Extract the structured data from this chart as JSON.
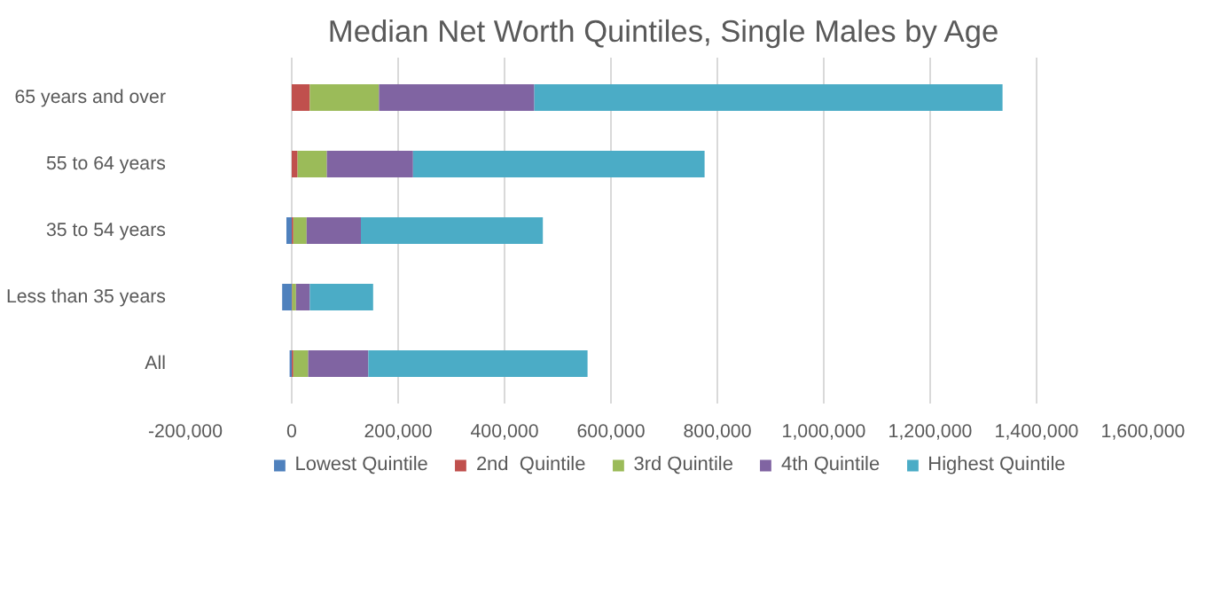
{
  "chart_data": {
    "type": "bar",
    "title": "Median Net Worth Quintiles, Single Males by Age",
    "orientation": "horizontal",
    "stacked": true,
    "categories": [
      "65 years and over",
      "55 to 64 years",
      "35 to 54 years",
      "Less than 35 years",
      "All"
    ],
    "series": [
      {
        "name": "Lowest Quintile",
        "color": "#4f81bd",
        "values": [
          0,
          0,
          -10000,
          -18000,
          -4000
        ]
      },
      {
        "name": "2nd  Quintile",
        "color": "#c0504d",
        "values": [
          34000,
          11000,
          3000,
          1000,
          3000
        ]
      },
      {
        "name": "3rd Quintile",
        "color": "#9bbb59",
        "values": [
          130000,
          55000,
          25000,
          7000,
          28000
        ]
      },
      {
        "name": "4th Quintile",
        "color": "#8064a2",
        "values": [
          292000,
          162000,
          102000,
          26000,
          113000
        ]
      },
      {
        "name": "Highest Quintile",
        "color": "#4bacc6",
        "values": [
          880000,
          548000,
          342000,
          119000,
          412000
        ]
      }
    ],
    "xlim": [
      -200000,
      1600000
    ],
    "xticks": [
      {
        "value": -200000,
        "label": "-200,000"
      },
      0,
      {
        "value": 200000,
        "label": "200,000"
      },
      {
        "value": 400000,
        "label": "400,000"
      },
      {
        "value": 600000,
        "label": "600,000"
      },
      {
        "value": 800000,
        "label": "800,000"
      },
      {
        "value": 1000000,
        "label": "1,000,000"
      },
      {
        "value": 1200000,
        "label": "1,200,000"
      },
      {
        "value": 1400000,
        "label": "1,400,000"
      },
      {
        "value": 1600000,
        "label": "1,600,000"
      }
    ],
    "grid": "x",
    "legend": "bottom"
  }
}
